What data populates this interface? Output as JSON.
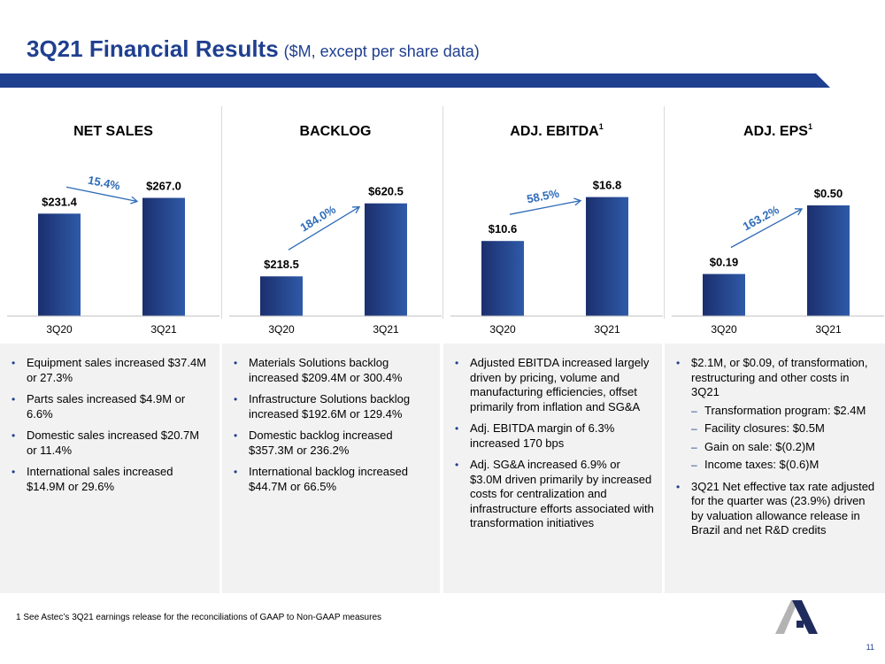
{
  "header": {
    "title": "3Q21 Financial Results",
    "subtitle": "($M, except per share data)"
  },
  "chart_data": [
    {
      "type": "bar",
      "title": "NET SALES",
      "title_sup": "",
      "categories": [
        "3Q20",
        "3Q21"
      ],
      "values": [
        231.4,
        267.0
      ],
      "labels": [
        "$231.4",
        "$267.0"
      ],
      "growth_label": "15.4%",
      "ylim": [
        0,
        320
      ]
    },
    {
      "type": "bar",
      "title": "BACKLOG",
      "title_sup": "",
      "categories": [
        "3Q20",
        "3Q21"
      ],
      "values": [
        218.5,
        620.5
      ],
      "labels": [
        "$218.5",
        "$620.5"
      ],
      "growth_label": "184.0%",
      "ylim": [
        0,
        780
      ]
    },
    {
      "type": "bar",
      "title": "ADJ. EBITDA",
      "title_sup": "1",
      "categories": [
        "3Q20",
        "3Q21"
      ],
      "values": [
        10.6,
        16.8
      ],
      "labels": [
        "$10.6",
        "$16.8"
      ],
      "growth_label": "58.5%",
      "ylim": [
        0,
        20
      ]
    },
    {
      "type": "bar",
      "title": "ADJ. EPS",
      "title_sup": "1",
      "categories": [
        "3Q20",
        "3Q21"
      ],
      "values": [
        0.19,
        0.5
      ],
      "labels": [
        "$0.19",
        "$0.50"
      ],
      "growth_label": "163.2%",
      "ylim": [
        0,
        0.64
      ]
    }
  ],
  "notes": {
    "net_sales": [
      "Equipment sales increased $37.4M or 27.3%",
      "Parts sales increased $4.9M or 6.6%",
      "Domestic sales increased $20.7M or 11.4%",
      "International sales increased $14.9M or 29.6%"
    ],
    "backlog": [
      "Materials Solutions backlog increased $209.4M or 300.4%",
      "Infrastructure Solutions backlog increased $192.6M or 129.4%",
      "Domestic backlog increased $357.3M or 236.2%",
      "International backlog increased $44.7M or 66.5%"
    ],
    "ebitda": [
      "Adjusted EBITDA increased largely driven by pricing, volume and manufacturing efficiencies, offset primarily from inflation and SG&A",
      "Adj. EBITDA margin of 6.3% increased 170 bps",
      "Adj. SG&A increased 6.9% or $3.0M driven primarily by increased costs for centralization and infrastructure efforts associated with transformation initiatives"
    ],
    "eps": {
      "first": "$2.1M, or $0.09, of transformation, restructuring and other costs in 3Q21",
      "sub": [
        "Transformation program: $2.4M",
        "Facility closures: $0.5M",
        "Gain on sale: $(0.2)M",
        "Income taxes: $(0.6)M"
      ],
      "last": "3Q21 Net effective tax rate adjusted for the quarter was (23.9%) driven by valuation allowance release in Brazil and net R&D credits"
    }
  },
  "footnote": "1 See Astec’s 3Q21 earnings release for the reconciliations of GAAP to Non-GAAP measures",
  "page_number": "11",
  "colors": {
    "brand_blue": "#1f3f8f",
    "bar_dark": "#1b2f6e",
    "bar_light": "#2f5aa8",
    "arrow": "#2e6bb8",
    "panel_bg": "#f2f2f2",
    "logo_gray": "#b3b3b3",
    "logo_navy": "#1f2b5c"
  }
}
